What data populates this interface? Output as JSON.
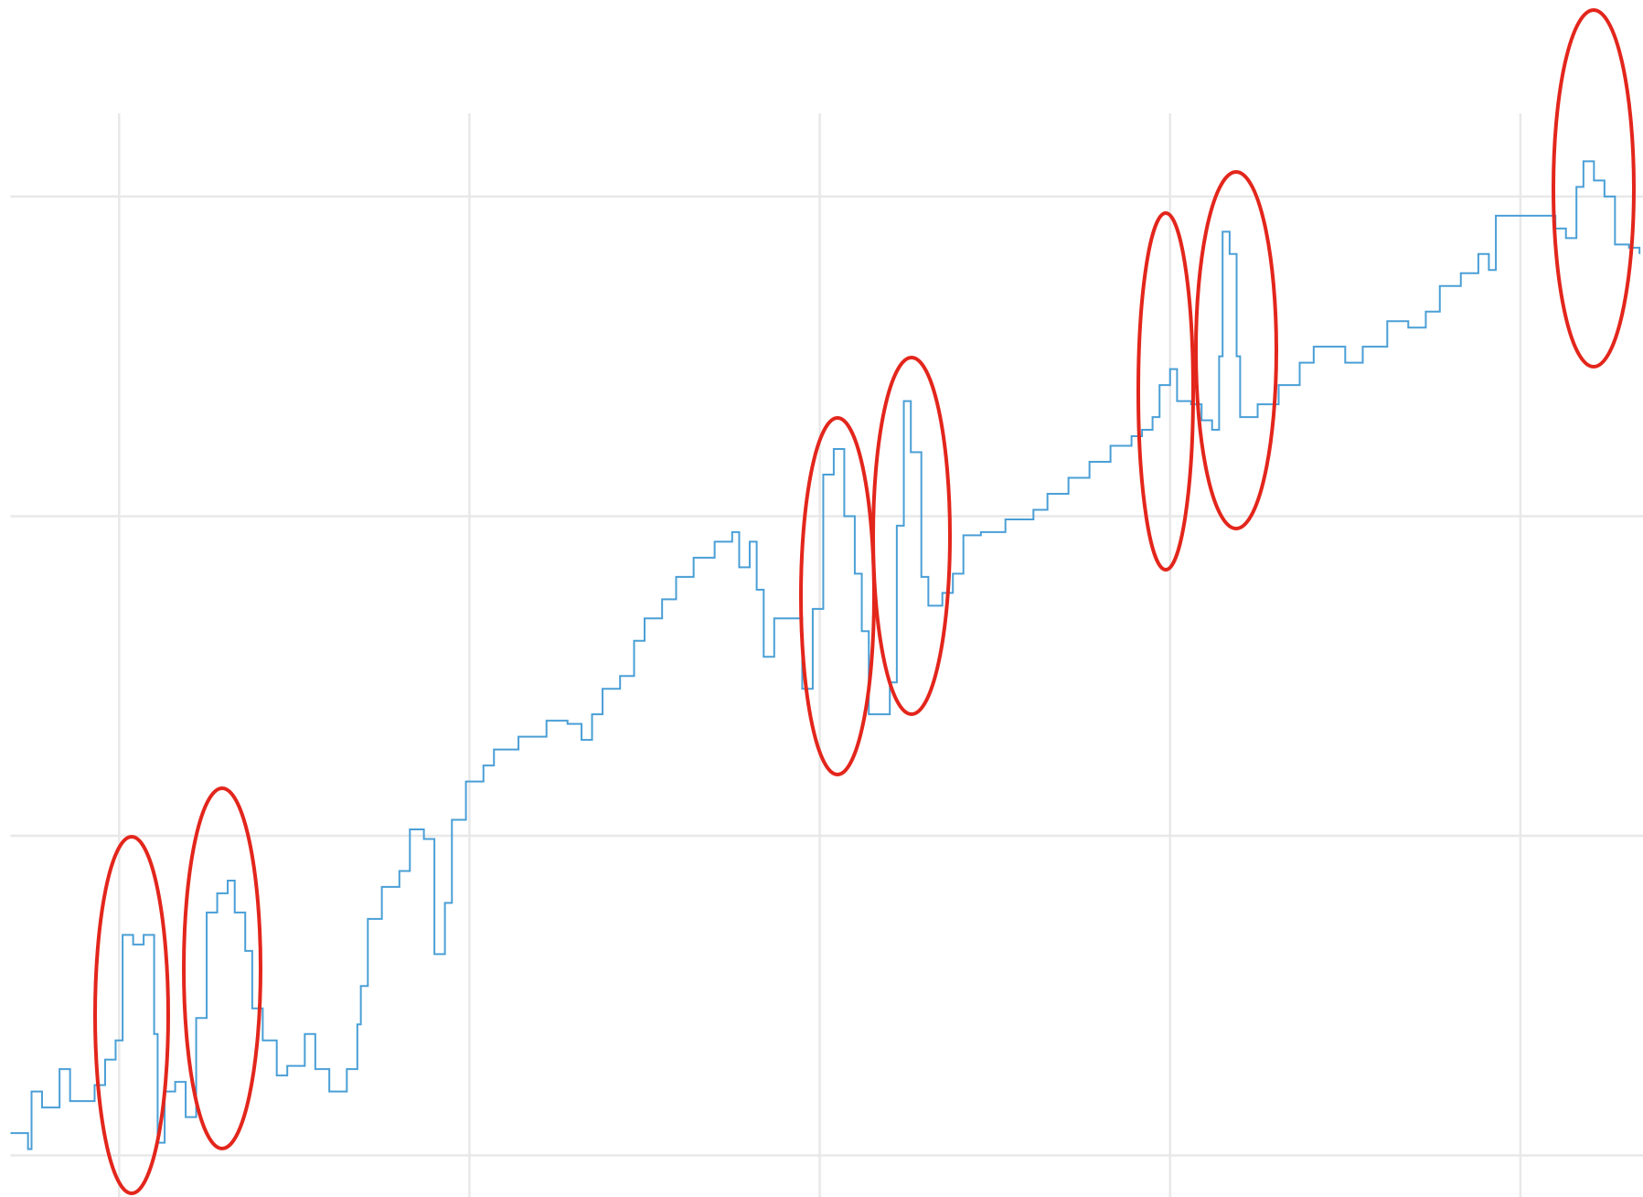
{
  "chart_data": {
    "type": "line",
    "step": true,
    "color": "#4a9fd6",
    "grid": true,
    "xlim": [
      -0.31,
      4.35
    ],
    "ylim": [
      -0.13,
      3.26
    ],
    "xticks": [
      0,
      1,
      2,
      3,
      4
    ],
    "yticks": [
      0,
      1,
      2,
      3
    ],
    "x": [
      -0.31,
      -0.26,
      -0.25,
      -0.22,
      -0.17,
      -0.14,
      -0.07,
      -0.04,
      -0.01,
      0.01,
      0.04,
      0.07,
      0.1,
      0.11,
      0.13,
      0.16,
      0.19,
      0.22,
      0.25,
      0.28,
      0.31,
      0.33,
      0.36,
      0.38,
      0.41,
      0.45,
      0.48,
      0.53,
      0.56,
      0.6,
      0.65,
      0.68,
      0.69,
      0.71,
      0.75,
      0.8,
      0.83,
      0.87,
      0.9,
      0.93,
      0.95,
      0.99,
      1.04,
      1.07,
      1.1,
      1.14,
      1.22,
      1.28,
      1.32,
      1.35,
      1.38,
      1.43,
      1.47,
      1.5,
      1.55,
      1.59,
      1.64,
      1.7,
      1.75,
      1.77,
      1.8,
      1.82,
      1.84,
      1.87,
      1.92,
      1.95,
      1.98,
      2.01,
      2.04,
      2.07,
      2.1,
      2.12,
      2.14,
      2.17,
      2.2,
      2.22,
      2.24,
      2.26,
      2.29,
      2.31,
      2.35,
      2.38,
      2.41,
      2.46,
      2.53,
      2.61,
      2.65,
      2.71,
      2.77,
      2.83,
      2.89,
      2.92,
      2.95,
      2.97,
      3.0,
      3.02,
      3.06,
      3.09,
      3.12,
      3.14,
      3.15,
      3.17,
      3.19,
      3.2,
      3.25,
      3.31,
      3.37,
      3.41,
      3.47,
      3.5,
      3.55,
      3.62,
      3.68,
      3.73,
      3.77,
      3.83,
      3.88,
      3.91,
      3.93,
      3.98,
      4.04,
      4.1,
      4.13,
      4.16,
      4.18,
      4.21,
      4.24,
      4.27,
      4.31,
      4.34
    ],
    "values": [
      0.07,
      0.02,
      0.2,
      0.15,
      0.27,
      0.17,
      0.22,
      0.3,
      0.36,
      0.69,
      0.66,
      0.69,
      0.38,
      0.04,
      0.2,
      0.23,
      0.12,
      0.43,
      0.76,
      0.82,
      0.86,
      0.76,
      0.64,
      0.46,
      0.36,
      0.25,
      0.28,
      0.38,
      0.27,
      0.2,
      0.27,
      0.41,
      0.53,
      0.74,
      0.84,
      0.89,
      1.02,
      0.99,
      0.63,
      0.79,
      1.05,
      1.17,
      1.22,
      1.27,
      1.27,
      1.31,
      1.36,
      1.35,
      1.3,
      1.38,
      1.46,
      1.5,
      1.61,
      1.68,
      1.74,
      1.81,
      1.87,
      1.92,
      1.95,
      1.84,
      1.92,
      1.77,
      1.56,
      1.68,
      1.68,
      1.46,
      1.71,
      2.13,
      2.21,
      2.0,
      1.82,
      1.64,
      1.38,
      1.38,
      1.48,
      1.97,
      2.36,
      2.2,
      1.81,
      1.72,
      1.76,
      1.82,
      1.94,
      1.95,
      1.99,
      2.02,
      2.07,
      2.12,
      2.17,
      2.22,
      2.25,
      2.27,
      2.31,
      2.41,
      2.46,
      2.36,
      2.35,
      2.3,
      2.27,
      2.5,
      2.89,
      2.82,
      2.5,
      2.31,
      2.35,
      2.41,
      2.48,
      2.53,
      2.53,
      2.48,
      2.53,
      2.61,
      2.59,
      2.64,
      2.72,
      2.76,
      2.82,
      2.77,
      2.94,
      2.94,
      2.94,
      2.9,
      2.87,
      3.03,
      3.11,
      3.05,
      3.0,
      2.85,
      2.84,
      2.82
    ]
  }
}
